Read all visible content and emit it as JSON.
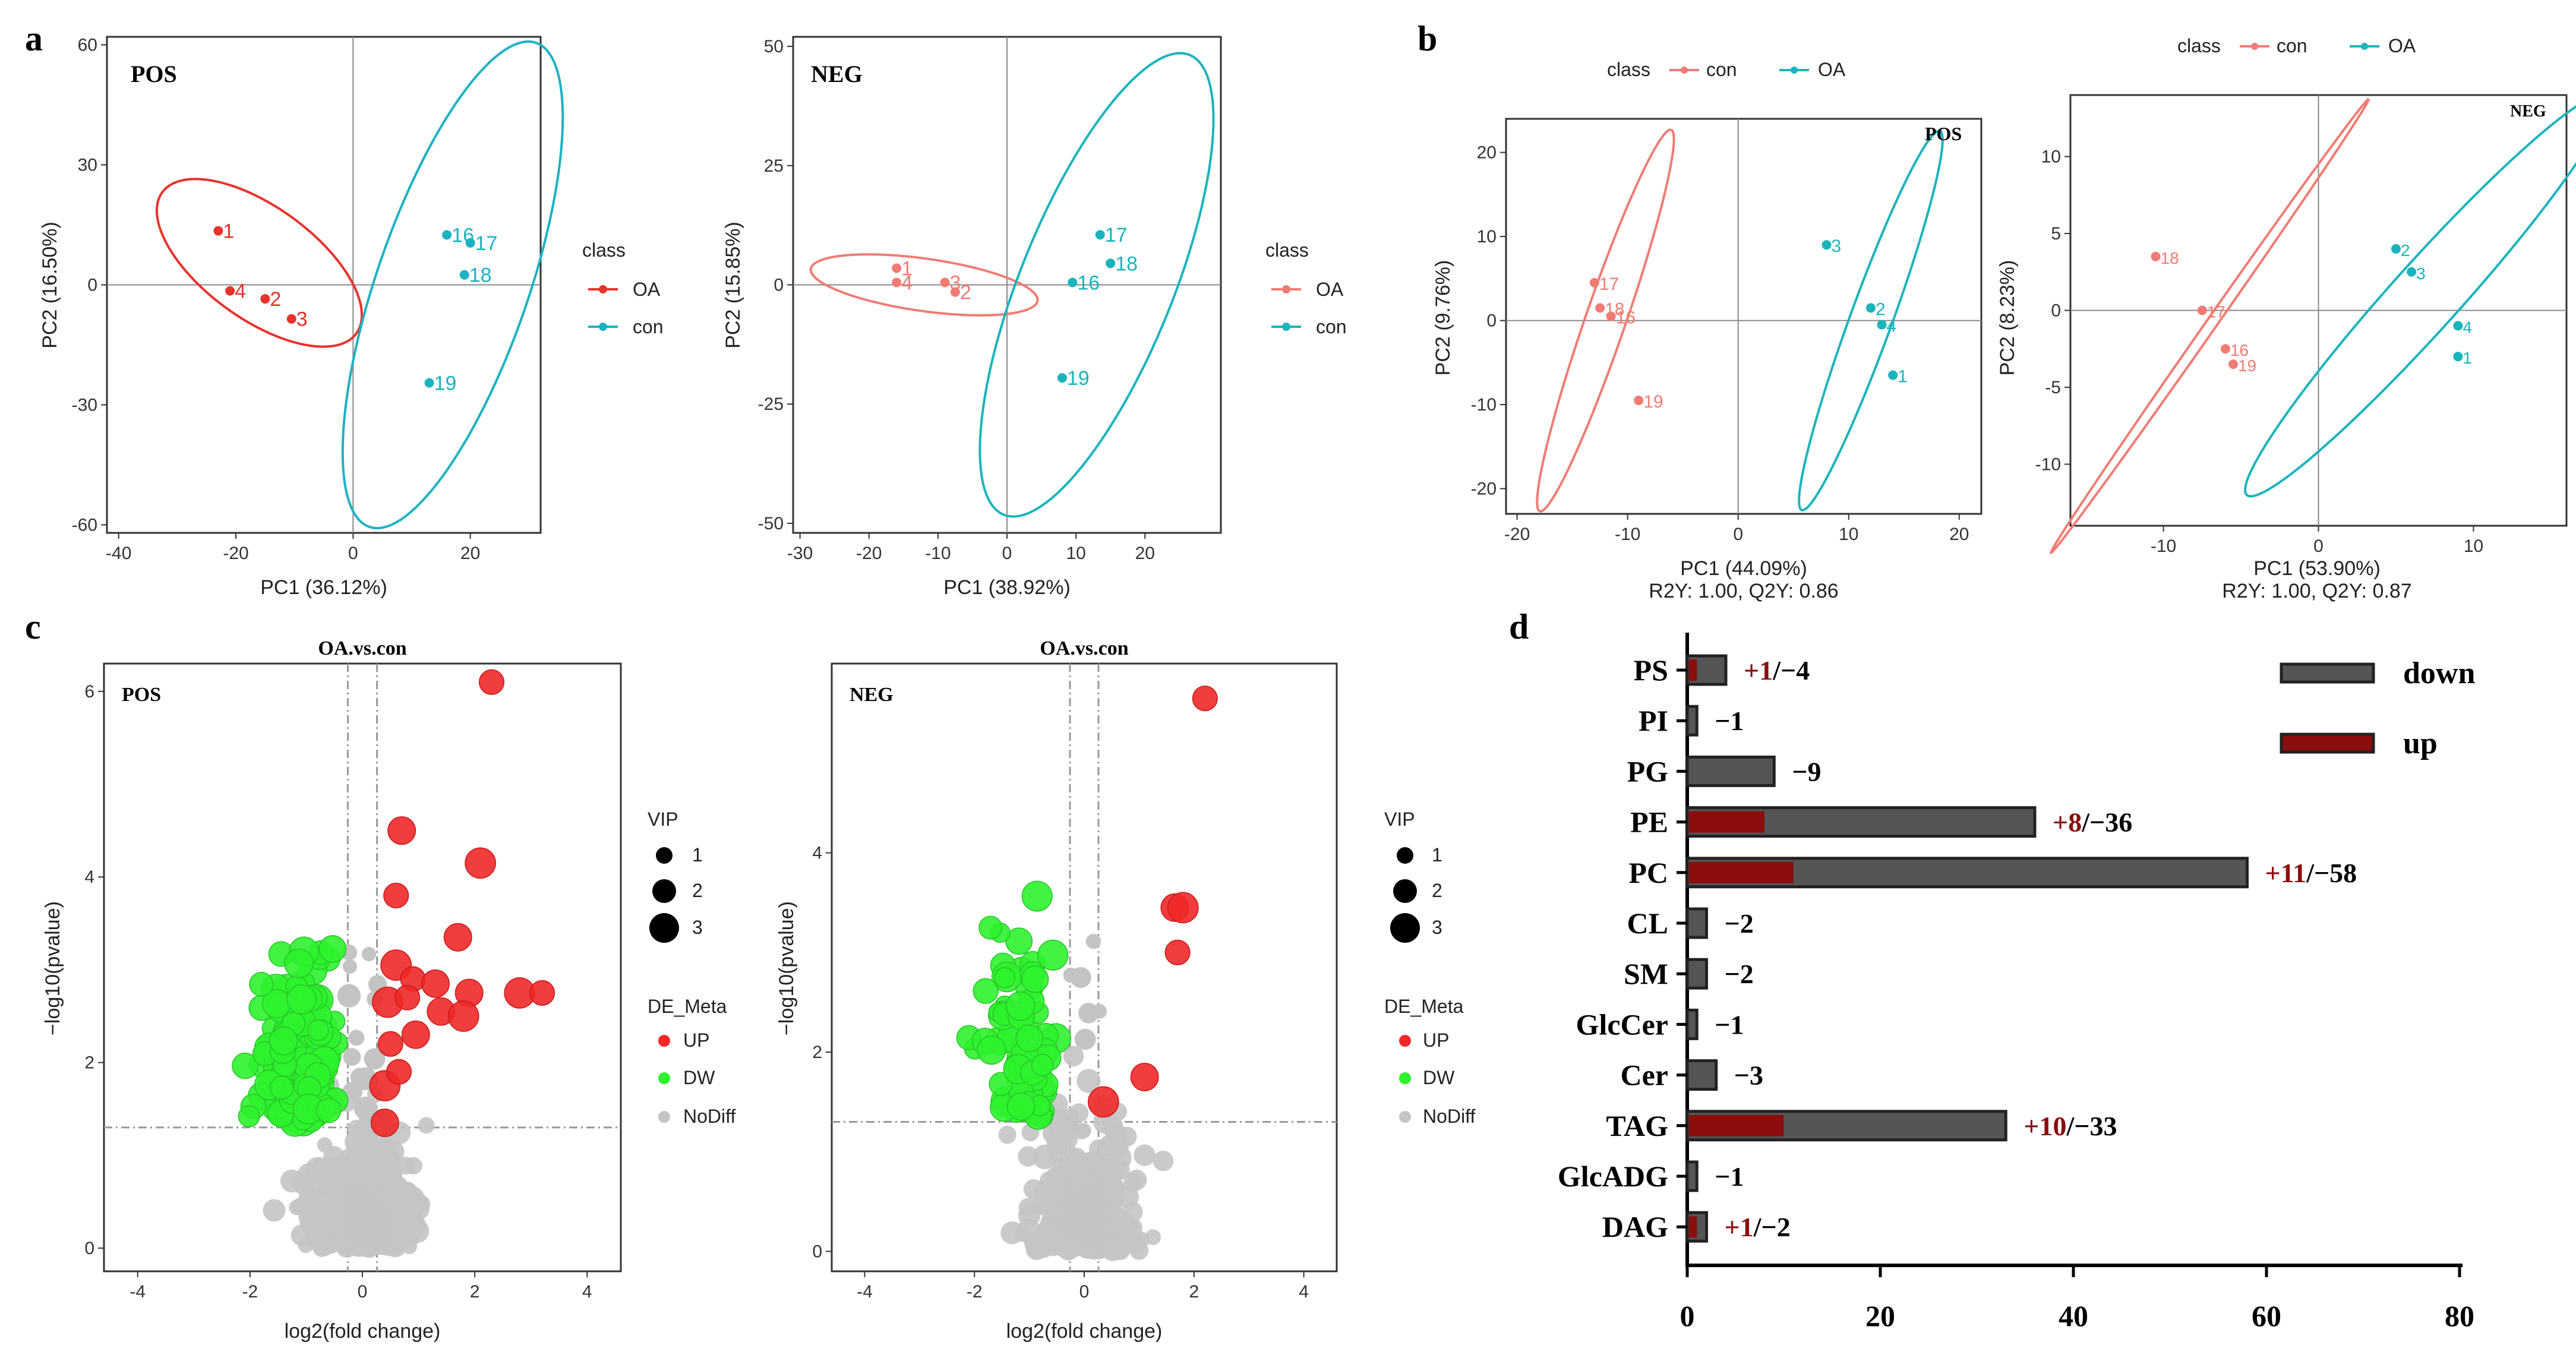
{
  "panel_labels": [
    "a",
    "b",
    "c",
    "d"
  ],
  "colors": {
    "red": "#e8322c",
    "teal": "#1bb2c2",
    "salmon": "#f07c74",
    "teal2": "#1ab4bc",
    "green": "#2ef22e",
    "up": "#f02828",
    "grey": "#c4c4c4",
    "dark": "#555555",
    "darkred": "#8b0d0d"
  },
  "chart_data": [
    {
      "id": "a1",
      "type": "scatter",
      "subtitle": "POS",
      "xlabel": "PC1 (36.12%)",
      "ylabel": "PC2 (16.50%)",
      "xlim": [
        -42,
        32
      ],
      "ylim": [
        -62,
        62
      ],
      "xticks": [
        -40,
        -20,
        0,
        20
      ],
      "yticks": [
        -60,
        -30,
        0,
        30,
        60
      ],
      "legend": {
        "title": "class",
        "items": [
          "OA",
          "con"
        ]
      },
      "series": [
        {
          "name": "OA",
          "color": "#e8322c",
          "points": [
            {
              "x": -23,
              "y": 13.5,
              "label": "1"
            },
            {
              "x": -21,
              "y": -1.5,
              "label": "4"
            },
            {
              "x": -15,
              "y": -3.5,
              "label": "2"
            },
            {
              "x": -10.5,
              "y": -8.5,
              "label": "3"
            }
          ],
          "ellipse": {
            "cx": -16,
            "cy": 5.5,
            "rx": 30,
            "ry": 14,
            "angle_deg": -36
          }
        },
        {
          "name": "con",
          "color": "#1bb2c2",
          "points": [
            {
              "x": 16,
              "y": 12.5,
              "label": "16"
            },
            {
              "x": 20,
              "y": 10.5,
              "label": "17"
            },
            {
              "x": 19,
              "y": 2.5,
              "label": "18"
            },
            {
              "x": 13,
              "y": -24.5,
              "label": "19"
            }
          ],
          "ellipse": {
            "cx": 17,
            "cy": 0,
            "rx": 64,
            "ry": 19,
            "angle_deg": 71
          }
        }
      ]
    },
    {
      "id": "a2",
      "type": "scatter",
      "subtitle": "NEG",
      "xlabel": "PC1 (38.92%)",
      "ylabel": "PC2 (15.85%)",
      "xlim": [
        -31,
        31
      ],
      "ylim": [
        -52,
        52
      ],
      "xticks": [
        -30,
        -20,
        -10,
        0,
        10,
        20
      ],
      "yticks": [
        -50,
        -25,
        0,
        25,
        50
      ],
      "legend": {
        "title": "class",
        "items": [
          "OA",
          "con"
        ]
      },
      "series": [
        {
          "name": "OA",
          "color": "#f07c74",
          "points": [
            {
              "x": -16,
              "y": 3.5,
              "label": "1"
            },
            {
              "x": -16,
              "y": 0.5,
              "label": "4"
            },
            {
              "x": -9,
              "y": 0.5,
              "label": "3"
            },
            {
              "x": -7.5,
              "y": -1.5,
              "label": "2"
            }
          ],
          "ellipse": {
            "cx": -12,
            "cy": 0,
            "rx": 24,
            "ry": 5.5,
            "angle_deg": -8
          }
        },
        {
          "name": "con",
          "color": "#1ab4bc",
          "points": [
            {
              "x": 13.5,
              "y": 10.5,
              "label": "17"
            },
            {
              "x": 15,
              "y": 4.5,
              "label": "18"
            },
            {
              "x": 9.5,
              "y": 0.5,
              "label": "16"
            },
            {
              "x": 8,
              "y": -19.5,
              "label": "19"
            }
          ],
          "ellipse": {
            "cx": 13,
            "cy": 0,
            "rx": 52,
            "ry": 16,
            "angle_deg": 68
          }
        }
      ]
    },
    {
      "id": "b1",
      "type": "scatter",
      "subtitle": "POS",
      "xlabel": "PC1 (44.09%)",
      "xlabel2": "R2Y: 1.00, Q2Y: 0.86",
      "ylabel": "PC2 (9.76%)",
      "xlim": [
        -21,
        22
      ],
      "ylim": [
        -23,
        24
      ],
      "xticks": [
        -20,
        -10,
        0,
        10,
        20
      ],
      "yticks": [
        -20,
        -10,
        0,
        10,
        20
      ],
      "legend": {
        "title": "class",
        "items": [
          "con",
          "OA"
        ]
      },
      "series": [
        {
          "name": "con",
          "color": "#f07c74",
          "points": [
            {
              "x": -13,
              "y": 4.5,
              "label": "17"
            },
            {
              "x": -12.5,
              "y": 1.5,
              "label": "18"
            },
            {
              "x": -11.5,
              "y": 0.5,
              "label": "16"
            },
            {
              "x": -9,
              "y": -9.5,
              "label": "19"
            }
          ],
          "ellipse": {
            "cx": -12,
            "cy": 0,
            "rx": 24,
            "ry": 2.4,
            "angle_deg": 71
          }
        },
        {
          "name": "OA",
          "color": "#1ab4bc",
          "points": [
            {
              "x": 8,
              "y": 9,
              "label": "3"
            },
            {
              "x": 12,
              "y": 1.5,
              "label": "2"
            },
            {
              "x": 13,
              "y": -0.5,
              "label": "4"
            },
            {
              "x": 14,
              "y": -6.5,
              "label": "1"
            }
          ],
          "ellipse": {
            "cx": 12,
            "cy": 0,
            "rx": 24,
            "ry": 2.5,
            "angle_deg": 70
          }
        }
      ]
    },
    {
      "id": "b2",
      "type": "scatter",
      "subtitle": "NEG",
      "xlabel": "PC1 (53.90%)",
      "xlabel2": "R2Y: 1.00, Q2Y: 0.87",
      "ylabel": "PC2 (8.23%)",
      "xlim": [
        -16,
        16
      ],
      "ylim": [
        -14,
        14
      ],
      "xticks": [
        -10,
        0,
        10
      ],
      "yticks": [
        -10,
        -5,
        0,
        5,
        10
      ],
      "legend": {
        "title": "class",
        "items": [
          "con",
          "OA"
        ]
      },
      "series": [
        {
          "name": "con",
          "color": "#f07c74",
          "points": [
            {
              "x": -10.5,
              "y": 3.5,
              "label": "18"
            },
            {
              "x": -7.5,
              "y": 0,
              "label": "17"
            },
            {
              "x": -6,
              "y": -2.5,
              "label": "16"
            },
            {
              "x": -5.5,
              "y": -3.5,
              "label": "19"
            }
          ],
          "ellipse": {
            "cx": -7,
            "cy": -1,
            "rx": 18,
            "ry": 0.35,
            "angle_deg": 55
          }
        },
        {
          "name": "OA",
          "color": "#1ab4bc",
          "points": [
            {
              "x": 5,
              "y": 4,
              "label": "2"
            },
            {
              "x": 6,
              "y": 2.5,
              "label": "3"
            },
            {
              "x": 9,
              "y": -1,
              "label": "4"
            },
            {
              "x": 9,
              "y": -3,
              "label": "1"
            }
          ],
          "ellipse": {
            "cx": 7,
            "cy": 1,
            "rx": 17.5,
            "ry": 2.2,
            "angle_deg": 48
          }
        }
      ]
    },
    {
      "id": "c1",
      "type": "scatter",
      "subtitle": "POS",
      "title": "OA.vs.con",
      "xlabel": "log2(fold change)",
      "ylabel": "−log10(pvalue)",
      "xlim": [
        -4.6,
        4.6
      ],
      "ylim": [
        -0.25,
        6.3
      ],
      "xticks": [
        -4,
        -2,
        0,
        2,
        4
      ],
      "yticks": [
        0,
        2,
        4,
        6
      ],
      "ythreshold": 1.3,
      "xthresholds": [
        -0.26,
        0.26
      ]
    },
    {
      "id": "c2",
      "type": "scatter",
      "subtitle": "NEG",
      "title": "OA.vs.con",
      "xlabel": "log2(fold change)",
      "ylabel": "−log10(pvalue)",
      "xlim": [
        -4.6,
        4.6
      ],
      "ylim": [
        -0.2,
        5.9
      ],
      "xticks": [
        -4,
        -2,
        0,
        2,
        4
      ],
      "yticks": [
        0,
        2,
        4
      ],
      "ythreshold": 1.3,
      "xthresholds": [
        -0.26,
        0.26
      ]
    },
    {
      "id": "d",
      "type": "bar",
      "orientation": "horizontal",
      "categories": [
        "PS",
        "PI",
        "PG",
        "PE",
        "PC",
        "CL",
        "SM",
        "GlcCer",
        "Cer",
        "TAG",
        "GlcADG",
        "DAG"
      ],
      "series": [
        {
          "name": "down",
          "values": [
            4,
            1,
            9,
            36,
            58,
            2,
            2,
            1,
            3,
            33,
            1,
            2
          ]
        },
        {
          "name": "up",
          "values": [
            1,
            0,
            0,
            8,
            11,
            0,
            0,
            0,
            0,
            10,
            0,
            1
          ]
        }
      ],
      "annotations": [
        {
          "up": "+1",
          "down": "/−4"
        },
        {
          "up": "",
          "down": "−1"
        },
        {
          "up": "",
          "down": "−9"
        },
        {
          "up": "+8",
          "down": "/−36"
        },
        {
          "up": "+11",
          "down": "/−58"
        },
        {
          "up": "",
          "down": "−2"
        },
        {
          "up": "",
          "down": "−2"
        },
        {
          "up": "",
          "down": "−1"
        },
        {
          "up": "",
          "down": "−3"
        },
        {
          "up": "+10",
          "down": "/−33"
        },
        {
          "up": "",
          "down": "−1"
        },
        {
          "up": "+1",
          "down": "/−2"
        }
      ],
      "xlim": [
        0,
        80
      ],
      "xticks": [
        0,
        20,
        40,
        60,
        80
      ],
      "legend": [
        "down",
        "up"
      ]
    }
  ],
  "volcano_legend": {
    "vip_title": "VIP",
    "vip_items": [
      "1",
      "2",
      "3"
    ],
    "de_title": "DE_Meta",
    "de_items": [
      "UP",
      "DW",
      "NoDiff"
    ]
  }
}
